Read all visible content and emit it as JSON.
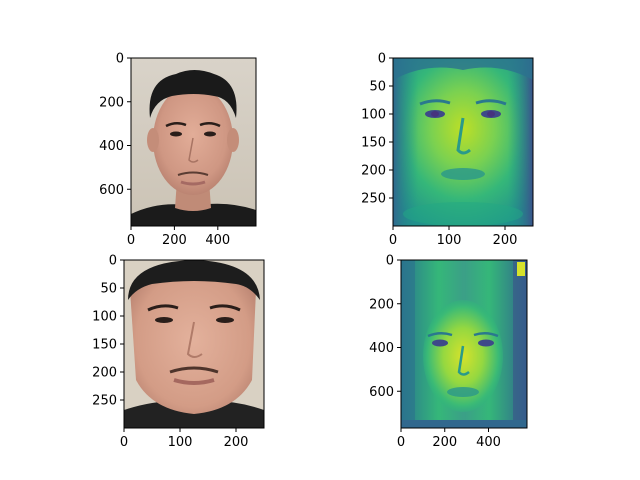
{
  "chart_data": [
    {
      "type": "image",
      "content": "photo of a face (RGB)",
      "colormap": "",
      "image_shape": [
        768,
        576
      ],
      "xlim": [
        0,
        576
      ],
      "ylim": [
        768,
        0
      ],
      "xticks": [
        0,
        200,
        400
      ],
      "yticks": [
        0,
        200,
        400,
        600
      ],
      "colors": {
        "bg_top": "#d8d2c8",
        "bg_bottom": "#cec6b8",
        "hair": "#1a1a1a",
        "skin": "#d6a08c",
        "skin_shadow": "#b78272",
        "shirt": "#1b1b1b",
        "lips": "#a56a63"
      }
    },
    {
      "type": "image",
      "content": "mean face (grayscale, viridis colormap)",
      "colormap": "viridis",
      "image_shape": [
        300,
        250
      ],
      "xlim": [
        0,
        250
      ],
      "ylim": [
        300,
        0
      ],
      "xticks": [
        0,
        100,
        200
      ],
      "yticks": [
        0,
        50,
        100,
        150,
        200,
        250
      ],
      "colors": {
        "low": "#3b528b",
        "mid": "#21918c",
        "high": "#5ec962",
        "peak": "#bddf26"
      }
    },
    {
      "type": "image",
      "content": "aligned face crop (RGB)",
      "colormap": "",
      "image_shape": [
        300,
        250
      ],
      "xlim": [
        0,
        250
      ],
      "ylim": [
        300,
        0
      ],
      "xticks": [
        0,
        100,
        200
      ],
      "yticks": [
        0,
        50,
        100,
        150,
        200,
        250
      ],
      "colors": {
        "bg": "#d9d1c3",
        "hair": "#1d1d1d",
        "skin": "#dba690",
        "skin_shadow": "#c08a76",
        "shirt": "#222222",
        "lips": "#a5685f"
      }
    },
    {
      "type": "image",
      "content": "mean face at original size (viridis colormap)",
      "colormap": "viridis",
      "image_shape": [
        768,
        576
      ],
      "xlim": [
        0,
        576
      ],
      "ylim": [
        768,
        0
      ],
      "xticks": [
        0,
        200,
        400
      ],
      "yticks": [
        0,
        200,
        400,
        600
      ],
      "colors": {
        "low": "#3b528b",
        "mid": "#21918c",
        "high": "#5ec962",
        "peak": "#d6e22b"
      }
    }
  ]
}
